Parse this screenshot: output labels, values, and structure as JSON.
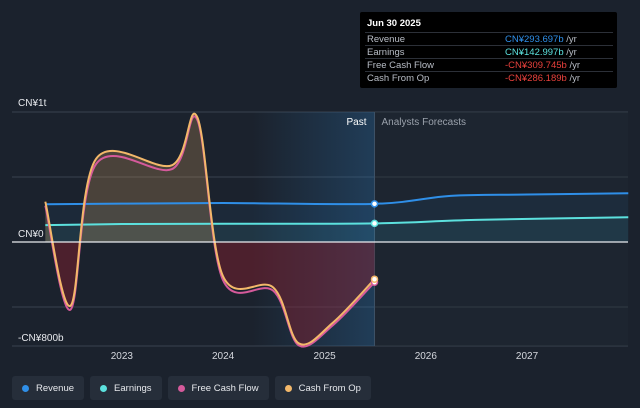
{
  "chart_data": {
    "type": "line",
    "y_axis": {
      "max_label": "CN¥1t",
      "zero_label": "CN¥0",
      "min_label": "-CN¥800b",
      "range": [
        -800,
        1000
      ],
      "unit": "CN¥b"
    },
    "x_ticks": [
      "2023",
      "2024",
      "2025",
      "2026",
      "2027"
    ],
    "region_labels": {
      "past": "Past",
      "forecast": "Analysts Forecasts"
    },
    "past_end": "2025-06-30",
    "series": [
      {
        "name": "Revenue",
        "color": "#2f8fe8",
        "points": [
          [
            "2022-03-31",
            290
          ],
          [
            "2023-01-01",
            295
          ],
          [
            "2024-01-01",
            300
          ],
          [
            "2025-06-30",
            293.697
          ],
          [
            "2026-03-31",
            355
          ],
          [
            "2027-01-01",
            365
          ],
          [
            "2028-01-01",
            375
          ]
        ]
      },
      {
        "name": "Earnings",
        "color": "#5ce1de",
        "points": [
          [
            "2022-03-31",
            130
          ],
          [
            "2023-01-01",
            138
          ],
          [
            "2024-01-01",
            140
          ],
          [
            "2025-06-30",
            142.997
          ],
          [
            "2026-06-30",
            170
          ],
          [
            "2028-01-01",
            190
          ]
        ]
      },
      {
        "name": "Free Cash Flow",
        "color": "#d55a9b",
        "points": [
          [
            "2022-03-31",
            280
          ],
          [
            "2022-06-30",
            -520
          ],
          [
            "2022-09-30",
            600
          ],
          [
            "2023-06-30",
            560
          ],
          [
            "2023-09-30",
            940
          ],
          [
            "2023-12-31",
            -290
          ],
          [
            "2024-06-30",
            -375
          ],
          [
            "2024-09-30",
            -795
          ],
          [
            "2025-01-31",
            -640
          ],
          [
            "2025-06-30",
            -309.745
          ]
        ]
      },
      {
        "name": "Cash From Op",
        "color": "#f3b86a",
        "points": [
          [
            "2022-03-31",
            310
          ],
          [
            "2022-06-30",
            -490
          ],
          [
            "2022-09-30",
            640
          ],
          [
            "2023-06-30",
            590
          ],
          [
            "2023-09-30",
            960
          ],
          [
            "2023-12-31",
            -260
          ],
          [
            "2024-06-30",
            -350
          ],
          [
            "2024-09-30",
            -780
          ],
          [
            "2025-01-31",
            -620
          ],
          [
            "2025-06-30",
            -286.189
          ]
        ]
      }
    ]
  },
  "tooltip": {
    "date": "Jun 30 2025",
    "unit": "/yr",
    "rows": [
      {
        "name": "Revenue",
        "value": "CN¥293.697b",
        "color": "#2f8fe8"
      },
      {
        "name": "Earnings",
        "value": "CN¥142.997b",
        "color": "#5ce1de"
      },
      {
        "name": "Free Cash Flow",
        "value": "-CN¥309.745b",
        "color": "#e8413c"
      },
      {
        "name": "Cash From Op",
        "value": "-CN¥286.189b",
        "color": "#e8413c"
      }
    ]
  },
  "legend": [
    {
      "label": "Revenue",
      "color": "#2f8fe8"
    },
    {
      "label": "Earnings",
      "color": "#5ce1de"
    },
    {
      "label": "Free Cash Flow",
      "color": "#d55a9b"
    },
    {
      "label": "Cash From Op",
      "color": "#f3b86a"
    }
  ]
}
